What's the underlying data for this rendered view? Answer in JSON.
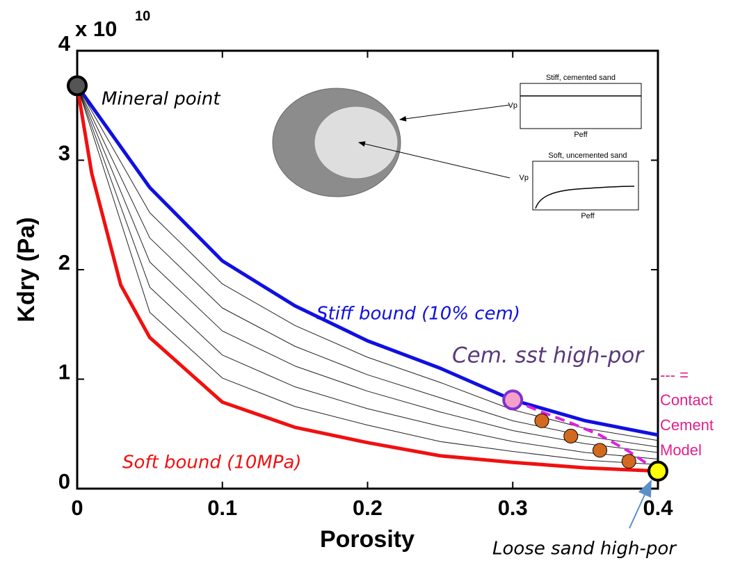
{
  "chart_data": {
    "type": "line",
    "xlabel": "Porosity",
    "ylabel": "Kdry (Pa)",
    "multiplier": {
      "base": "x 10",
      "exponent": "10"
    },
    "xlim": [
      0,
      0.4
    ],
    "ylim": [
      0,
      4
    ],
    "xticks": [
      0,
      0.1,
      0.2,
      0.3,
      0.4
    ],
    "yticks": [
      0,
      1,
      2,
      3,
      4
    ],
    "series": [
      {
        "name": "Stiff bound (10% cem)",
        "color": "#1010e0",
        "width": 5,
        "x": [
          0,
          0.05,
          0.1,
          0.15,
          0.2,
          0.25,
          0.3,
          0.35,
          0.4
        ],
        "values": [
          3.68,
          2.75,
          2.08,
          1.67,
          1.35,
          1.1,
          0.81,
          0.62,
          0.49
        ]
      },
      {
        "name": "Soft bound (10MPa)",
        "color": "#f01010",
        "width": 5,
        "x": [
          0,
          0.01,
          0.02,
          0.03,
          0.05,
          0.1,
          0.15,
          0.2,
          0.25,
          0.3,
          0.35,
          0.4
        ],
        "values": [
          3.68,
          2.88,
          2.37,
          1.86,
          1.38,
          0.79,
          0.56,
          0.42,
          0.3,
          0.24,
          0.19,
          0.16
        ]
      },
      {
        "color": "#222222",
        "width": 1,
        "x": [
          0,
          0.05,
          0.1,
          0.15,
          0.2,
          0.25,
          0.3,
          0.35,
          0.4
        ],
        "values": [
          3.68,
          1.61,
          1.01,
          0.75,
          0.58,
          0.43,
          0.34,
          0.26,
          0.22
        ]
      },
      {
        "color": "#222222",
        "width": 1,
        "x": [
          0,
          0.05,
          0.1,
          0.15,
          0.2,
          0.25,
          0.3,
          0.35,
          0.4
        ],
        "values": [
          3.68,
          1.84,
          1.22,
          0.93,
          0.73,
          0.57,
          0.43,
          0.33,
          0.27
        ]
      },
      {
        "color": "#222222",
        "width": 1,
        "x": [
          0,
          0.05,
          0.1,
          0.15,
          0.2,
          0.25,
          0.3,
          0.35,
          0.4
        ],
        "values": [
          3.68,
          2.07,
          1.44,
          1.12,
          0.89,
          0.7,
          0.53,
          0.41,
          0.33
        ]
      },
      {
        "color": "#222222",
        "width": 1,
        "x": [
          0,
          0.05,
          0.1,
          0.15,
          0.2,
          0.25,
          0.3,
          0.35,
          0.4
        ],
        "values": [
          3.68,
          2.29,
          1.65,
          1.3,
          1.04,
          0.83,
          0.62,
          0.48,
          0.38
        ]
      },
      {
        "color": "#222222",
        "width": 1,
        "x": [
          0,
          0.05,
          0.1,
          0.15,
          0.2,
          0.25,
          0.3,
          0.35,
          0.4
        ],
        "values": [
          3.68,
          2.52,
          1.87,
          1.49,
          1.2,
          0.97,
          0.72,
          0.55,
          0.44
        ]
      },
      {
        "color": "#e020e0",
        "width": 4,
        "dashed": true,
        "x": [
          0.3,
          0.32,
          0.34,
          0.36,
          0.38,
          0.4
        ],
        "values": [
          0.81,
          0.7,
          0.6,
          0.49,
          0.34,
          0.16
        ]
      }
    ],
    "points": [
      {
        "name": "Mineral point",
        "x": 0,
        "y": 3.68,
        "color": "#555555",
        "edge": "#000000"
      },
      {
        "name": "Cem. sst high-por",
        "x": 0.3,
        "y": 0.81,
        "color": "#f4a0c8",
        "edge": "#8030d0"
      },
      {
        "name": "Loose sand high-por",
        "x": 0.4,
        "y": 0.16,
        "color": "#ffff00",
        "edge": "#000000"
      }
    ],
    "scatter": {
      "color": "#d2691e",
      "x": [
        0.32,
        0.34,
        0.36,
        0.38
      ],
      "values": [
        0.62,
        0.48,
        0.35,
        0.25
      ]
    },
    "contact_cement_label": [
      "--- =",
      "Contact",
      "Cement",
      "Model"
    ],
    "inset": {
      "stiff": {
        "title": "Stiff, cemented sand",
        "ylabel": "Vp",
        "xlabel": "Peff"
      },
      "soft": {
        "title": "Soft, uncemented sand",
        "ylabel": "Vp",
        "xlabel": "Peff"
      }
    }
  }
}
